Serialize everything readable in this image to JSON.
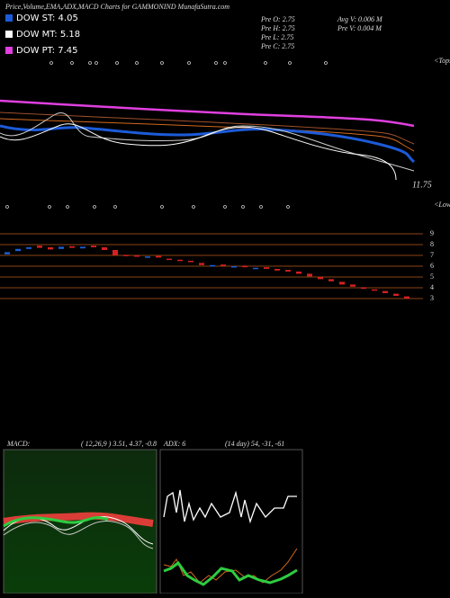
{
  "chart_data": {
    "type": "candlestick",
    "title": "Price,Volume,EMA,ADX,MACD Charts for GAMMONIND MunafaSutra.com",
    "legend": [
      {
        "name": "DOW ST: 4.05",
        "color": "#1c5bd8"
      },
      {
        "name": "DOW MT: 5.18",
        "color": "#ffffff"
      },
      {
        "name": "DOW PT: 7.45",
        "color": "#e040e0"
      }
    ],
    "stats": [
      "Pre  O: 2.75",
      "Pre  H: 2.75",
      "Pre  L: 2.75",
      "Pre  C: 2.75"
    ],
    "volume_stats": [
      "Avg V: 0.006  M",
      "Pre  V: 0.004  M"
    ],
    "price_label": "11.75",
    "tops_label": "<Tops",
    "lows_label": "<Lows",
    "open": [
      7.1,
      7.4,
      7.6,
      7.9,
      7.75,
      7.6,
      7.85,
      7.65,
      7.9,
      7.75,
      7.5,
      7.05,
      7.0,
      6.9,
      6.95,
      6.7,
      6.6,
      6.5,
      6.3,
      6.05,
      6.15,
      5.95,
      6.05,
      5.8,
      5.9,
      5.75,
      5.65,
      5.5,
      5.3,
      5.0,
      4.8,
      4.55,
      4.3,
      4.05,
      3.85,
      3.7,
      3.45,
      3.2
    ],
    "close": [
      7.3,
      7.6,
      7.75,
      7.7,
      7.55,
      7.8,
      7.7,
      7.8,
      7.75,
      7.5,
      7.0,
      7.0,
      6.95,
      6.9,
      6.8,
      6.6,
      6.55,
      6.4,
      6.1,
      6.1,
      6.0,
      6.0,
      5.9,
      5.85,
      5.75,
      5.6,
      5.5,
      5.3,
      5.05,
      4.8,
      4.6,
      4.3,
      4.1,
      3.9,
      3.75,
      3.5,
      3.25,
      3.0
    ],
    "up_color": "#1a5fd6",
    "down_color": "#d62020",
    "ylim": [
      2.75,
      9.25
    ],
    "yticks": [
      9,
      8,
      7,
      6,
      5,
      4,
      3
    ],
    "grid": true,
    "macd": {
      "label": "MACD:",
      "params": "( 12,26,9 ) 3.51,  4.37,  -0.8"
    },
    "adx": {
      "label": "ADX: 6",
      "params": "(14  day) 54,  -31,  -61"
    }
  }
}
